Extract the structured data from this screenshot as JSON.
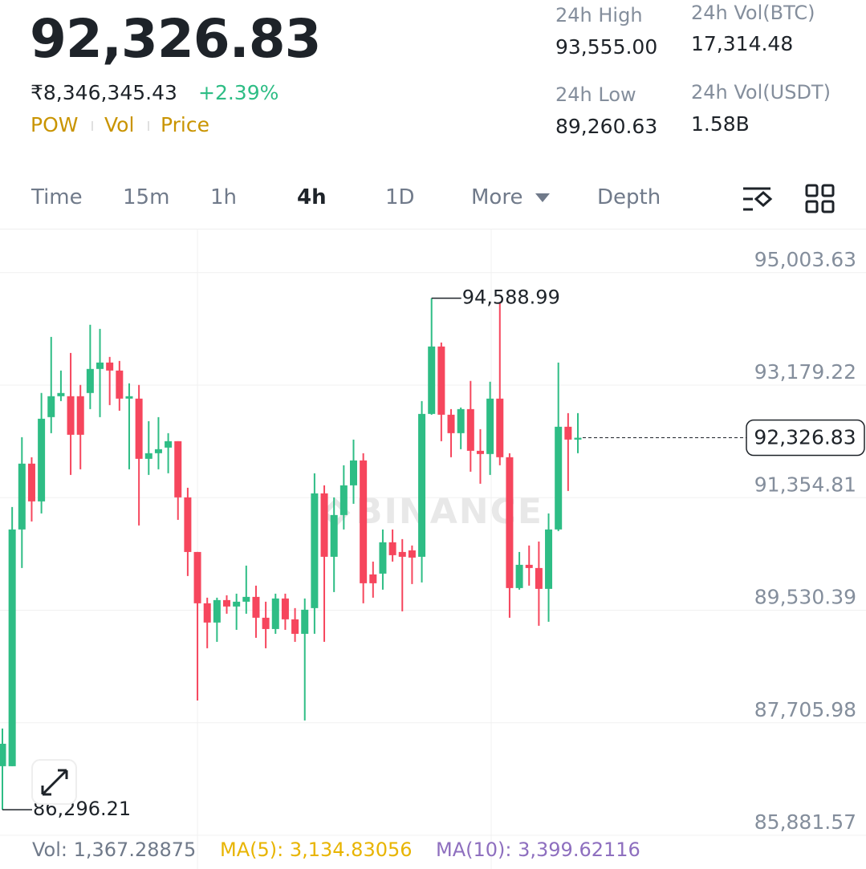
{
  "header": {
    "price": "92,326.83",
    "fiat": "₹8,346,345.43",
    "change": "+2.39%",
    "indicators": [
      "POW",
      "Vol",
      "Price"
    ]
  },
  "stats": [
    {
      "label": "24h High",
      "value": "93,555.00"
    },
    {
      "label": "24h Vol(BTC)",
      "value": "17,314.48"
    },
    {
      "label": "24h Low",
      "value": "89,260.63"
    },
    {
      "label": "24h Vol(USDT)",
      "value": "1.58B"
    }
  ],
  "tabs": {
    "items": [
      "Time",
      "15m",
      "1h",
      "4h",
      "1D",
      "More",
      "Depth"
    ],
    "active": 3
  },
  "chart_data": {
    "type": "candlestick",
    "watermark": "BINANCE",
    "up_color": "#2ebd85",
    "down_color": "#f6465d",
    "grid": true,
    "ylim": [
      85830,
      95690
    ],
    "yticks": [
      {
        "value": 95003.63,
        "label": "95,003.63"
      },
      {
        "value": 93179.22,
        "label": "93,179.22"
      },
      {
        "value": 91354.81,
        "label": "91,354.81"
      },
      {
        "value": 89530.39,
        "label": "89,530.39"
      },
      {
        "value": 87705.98,
        "label": "87,705.98"
      },
      {
        "value": 85881.57,
        "label": "85,881.57"
      }
    ],
    "open": [
      87002,
      87002,
      90840,
      91907,
      91295,
      92661,
      93000,
      93000,
      93000,
      93052,
      93442,
      93546,
      93416,
      92961,
      92961,
      91985,
      92076,
      92167,
      92271,
      91360,
      90475,
      89643,
      89331,
      89695,
      89591,
      89669,
      89747,
      89409,
      89226,
      89721,
      89383,
      89148,
      89565,
      91425,
      90397,
      91074,
      91555,
      91959,
      90111,
      90124,
      90632,
      90475,
      90501,
      90397,
      92713,
      93806,
      92700,
      92401,
      92791,
      92115,
      92063,
      92961,
      92011,
      89890,
      90267,
      90215,
      89877,
      90840,
      92505,
      92297
    ],
    "high": [
      87613,
      91204,
      92336,
      92011,
      93052,
      93962,
      93416,
      93702,
      93182,
      94158,
      94092,
      93637,
      93572,
      93208,
      93182,
      92596,
      92661,
      92401,
      92271,
      91516,
      90475,
      89734,
      89734,
      89773,
      89799,
      90254,
      89929,
      89669,
      89799,
      89799,
      89565,
      89721,
      91751,
      91555,
      91360,
      91881,
      92297,
      92076,
      90319,
      90840,
      90840,
      90684,
      90580,
      92921,
      94588.99,
      93871,
      92791,
      92817,
      93247,
      92466,
      93234,
      94509,
      92076,
      90475,
      90580,
      90645,
      91100,
      93546,
      92726,
      92726
    ],
    "low": [
      86296.21,
      87002,
      90215,
      90970,
      91100,
      92401,
      92921,
      91725,
      91815,
      92791,
      92661,
      92856,
      92765,
      91815,
      90905,
      91725,
      91815,
      91751,
      90996,
      90085,
      88068,
      88914,
      89018,
      89474,
      89213,
      89474,
      89083,
      88914,
      89148,
      89213,
      89018,
      87743,
      89148,
      89018,
      89825,
      90840,
      91256,
      89643,
      89734,
      89864,
      90319,
      89513,
      89955,
      89981,
      92700,
      92271,
      92011,
      92141,
      91777,
      91581,
      91725,
      91881,
      89409,
      89864,
      89929,
      89278,
      89344,
      90814,
      91464,
      92076
    ],
    "close": [
      87366,
      90840,
      91907,
      91295,
      92635,
      93000,
      93052,
      92375,
      92375,
      93442,
      93546,
      93416,
      92961,
      93000,
      91985,
      92076,
      92141,
      92271,
      91360,
      90475,
      89643,
      89331,
      89695,
      89591,
      89669,
      89747,
      89409,
      89226,
      89721,
      89383,
      89148,
      89539,
      91425,
      90397,
      91074,
      91555,
      91959,
      89968,
      89968,
      90632,
      90423,
      90397,
      90384,
      92713,
      93806,
      92700,
      92401,
      92791,
      92115,
      92063,
      92961,
      92011,
      89890,
      90267,
      90215,
      89877,
      90840,
      92505,
      92297,
      92326.83
    ],
    "annotations": [
      {
        "value": 94588.99,
        "label": "94,588.99"
      },
      {
        "value": 86296.21,
        "label": "86,296.21"
      }
    ],
    "last_price": {
      "value": 92326.83,
      "label": "92,326.83"
    }
  },
  "footer": {
    "vol": "Vol: 1,367.28875",
    "ma5": "MA(5): 3,134.83056",
    "ma10": "MA(10): 3,399.62116"
  }
}
